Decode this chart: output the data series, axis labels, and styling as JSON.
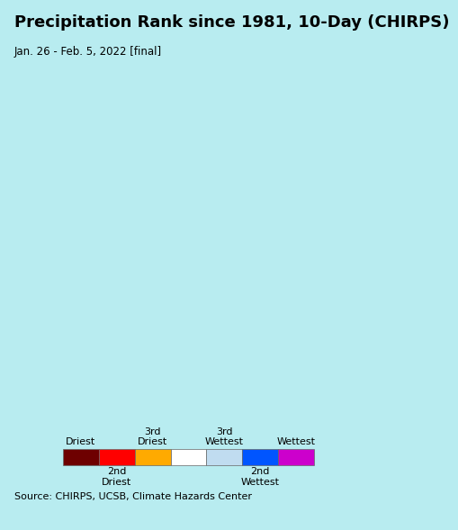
{
  "title": "Precipitation Rank since 1981, 10-Day (CHIRPS)",
  "subtitle": "Jan. 26 - Feb. 5, 2022 [final]",
  "source_text": "Source: CHIRPS, UCSB, Climate Hazards Center",
  "background_color": "#b8ecf0",
  "map_bg_color": "#b8ecf0",
  "land_color": "#f0f0ef",
  "border_color_country": "#000000",
  "border_color_state": "#888888",
  "legend_colors": [
    "#6e0000",
    "#ff0000",
    "#ffaa00",
    "#ffffff",
    "#c0dcf0",
    "#0055ff",
    "#cc00cc"
  ],
  "legend_labels_top": [
    "Driest",
    "",
    "3rd\nDriest",
    "",
    "3rd\nWettest",
    "",
    "Wettest"
  ],
  "legend_labels_bottom": [
    "",
    "2nd\nDriest",
    "",
    "",
    "",
    "2nd\nWettest",
    ""
  ],
  "legend_bg": "#ffffff",
  "source_bg": "#d0d0d0",
  "title_fontsize": 13,
  "subtitle_fontsize": 8.5,
  "source_fontsize": 8,
  "legend_fontsize": 8
}
